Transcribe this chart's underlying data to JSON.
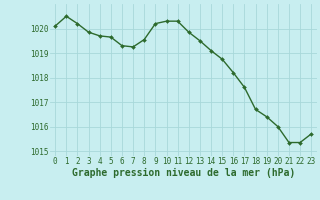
{
  "x": [
    0,
    1,
    2,
    3,
    4,
    5,
    6,
    7,
    8,
    9,
    10,
    11,
    12,
    13,
    14,
    15,
    16,
    17,
    18,
    19,
    20,
    21,
    22,
    23
  ],
  "y": [
    1020.1,
    1020.5,
    1020.2,
    1019.85,
    1019.7,
    1019.65,
    1019.3,
    1019.25,
    1019.55,
    1020.2,
    1020.3,
    1020.3,
    1019.85,
    1019.5,
    1019.1,
    1018.75,
    1018.2,
    1017.6,
    1016.7,
    1016.4,
    1016.0,
    1015.35,
    1015.35,
    1015.7
  ],
  "line_color": "#2d6a2d",
  "marker": "D",
  "marker_size": 2.0,
  "background_color": "#c8eef0",
  "grid_color": "#a8d8da",
  "axis_label_color": "#2d6a2d",
  "tick_color": "#2d6a2d",
  "xlabel": "Graphe pression niveau de la mer (hPa)",
  "xlabel_fontsize": 7,
  "ylim": [
    1014.8,
    1021.0
  ],
  "xlim": [
    -0.5,
    23.5
  ],
  "yticks": [
    1015,
    1016,
    1017,
    1018,
    1019,
    1020
  ],
  "xticks": [
    0,
    1,
    2,
    3,
    4,
    5,
    6,
    7,
    8,
    9,
    10,
    11,
    12,
    13,
    14,
    15,
    16,
    17,
    18,
    19,
    20,
    21,
    22,
    23
  ],
  "tick_fontsize": 5.5,
  "line_width": 1.0
}
